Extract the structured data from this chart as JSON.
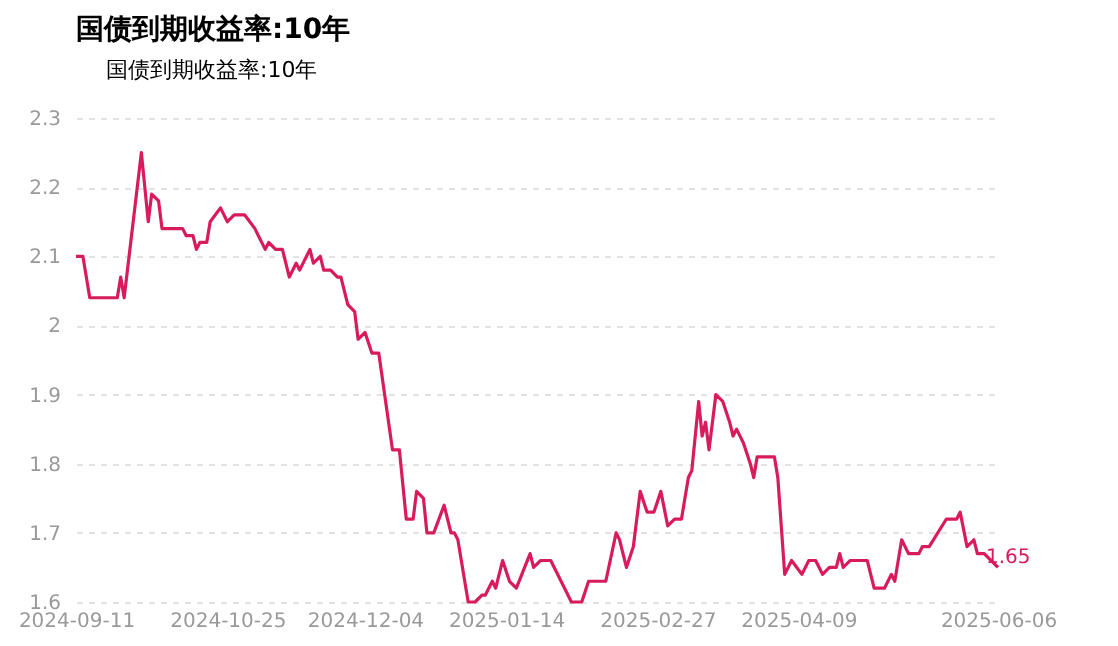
{
  "chart_data": {
    "type": "line",
    "title": "国债到期收益率:10年",
    "x": [
      "2024-09-11",
      "2024-09-13",
      "2024-09-15",
      "2024-09-23",
      "2024-09-24",
      "2024-09-25",
      "2024-09-30",
      "2024-10-02",
      "2024-10-03",
      "2024-10-05",
      "2024-10-06",
      "2024-10-12",
      "2024-10-13",
      "2024-10-15",
      "2024-10-16",
      "2024-10-17",
      "2024-10-19",
      "2024-10-20",
      "2024-10-23",
      "2024-10-25",
      "2024-10-27",
      "2024-10-30",
      "2024-11-02",
      "2024-11-05",
      "2024-11-06",
      "2024-11-08",
      "2024-11-10",
      "2024-11-12",
      "2024-11-14",
      "2024-11-15",
      "2024-11-18",
      "2024-11-19",
      "2024-11-21",
      "2024-11-22",
      "2024-11-24",
      "2024-11-26",
      "2024-11-27",
      "2024-11-29",
      "2024-12-01",
      "2024-12-02",
      "2024-12-04",
      "2024-12-06",
      "2024-12-08",
      "2024-12-12",
      "2024-12-14",
      "2024-12-16",
      "2024-12-18",
      "2024-12-19",
      "2024-12-21",
      "2024-12-22",
      "2024-12-24",
      "2024-12-27",
      "2024-12-29",
      "2024-12-30",
      "2024-12-31",
      "2025-01-03",
      "2025-01-05",
      "2025-01-07",
      "2025-01-08",
      "2025-01-10",
      "2025-01-11",
      "2025-01-13",
      "2025-01-15",
      "2025-01-17",
      "2025-01-21",
      "2025-01-22",
      "2025-01-24",
      "2025-01-27",
      "2025-01-30",
      "2025-02-02",
      "2025-02-05",
      "2025-02-07",
      "2025-02-12",
      "2025-02-15",
      "2025-02-16",
      "2025-02-18",
      "2025-02-20",
      "2025-02-22",
      "2025-02-24",
      "2025-02-26",
      "2025-02-28",
      "2025-03-02",
      "2025-03-04",
      "2025-03-06",
      "2025-03-08",
      "2025-03-09",
      "2025-03-11",
      "2025-03-12",
      "2025-03-13",
      "2025-03-14",
      "2025-03-15",
      "2025-03-16",
      "2025-03-18",
      "2025-03-20",
      "2025-03-21",
      "2025-03-22",
      "2025-03-24",
      "2025-03-26",
      "2025-03-27",
      "2025-03-28",
      "2025-04-02",
      "2025-04-03",
      "2025-04-05",
      "2025-04-07",
      "2025-04-10",
      "2025-04-12",
      "2025-04-14",
      "2025-04-16",
      "2025-04-18",
      "2025-04-20",
      "2025-04-21",
      "2025-04-22",
      "2025-04-24",
      "2025-04-29",
      "2025-05-01",
      "2025-05-04",
      "2025-05-06",
      "2025-05-07",
      "2025-05-09",
      "2025-05-11",
      "2025-05-14",
      "2025-05-15",
      "2025-05-17",
      "2025-05-22",
      "2025-05-25",
      "2025-05-26",
      "2025-05-28",
      "2025-05-30",
      "2025-05-31",
      "2025-06-02",
      "2025-06-04",
      "2025-06-06"
    ],
    "series": [
      {
        "name": "国债到期收益率:10年",
        "color": "#d81b5c",
        "values": [
          2.1,
          2.1,
          2.04,
          2.04,
          2.07,
          2.04,
          2.25,
          2.15,
          2.19,
          2.18,
          2.14,
          2.14,
          2.13,
          2.13,
          2.11,
          2.12,
          2.12,
          2.15,
          2.17,
          2.15,
          2.16,
          2.16,
          2.14,
          2.11,
          2.12,
          2.11,
          2.11,
          2.07,
          2.09,
          2.08,
          2.11,
          2.09,
          2.1,
          2.08,
          2.08,
          2.07,
          2.07,
          2.03,
          2.02,
          1.98,
          1.99,
          1.96,
          1.96,
          1.82,
          1.82,
          1.72,
          1.72,
          1.76,
          1.75,
          1.7,
          1.7,
          1.74,
          1.7,
          1.7,
          1.69,
          1.6,
          1.6,
          1.61,
          1.61,
          1.63,
          1.62,
          1.66,
          1.63,
          1.62,
          1.67,
          1.65,
          1.66,
          1.66,
          1.63,
          1.6,
          1.6,
          1.63,
          1.63,
          1.7,
          1.69,
          1.65,
          1.68,
          1.76,
          1.73,
          1.73,
          1.76,
          1.71,
          1.72,
          1.72,
          1.78,
          1.79,
          1.89,
          1.84,
          1.86,
          1.82,
          1.86,
          1.9,
          1.89,
          1.86,
          1.84,
          1.85,
          1.83,
          1.8,
          1.78,
          1.81,
          1.81,
          1.78,
          1.64,
          1.66,
          1.64,
          1.66,
          1.66,
          1.64,
          1.65,
          1.65,
          1.67,
          1.65,
          1.66,
          1.66,
          1.62,
          1.62,
          1.64,
          1.63,
          1.69,
          1.67,
          1.67,
          1.68,
          1.68,
          1.72,
          1.72,
          1.73,
          1.68,
          1.69,
          1.67,
          1.67,
          1.66,
          1.65
        ]
      }
    ],
    "xlim": [
      "2024-09-11",
      "2025-06-06"
    ],
    "xticks": [
      "2024-09-11",
      "2024-10-25",
      "2024-12-04",
      "2025-01-14",
      "2025-02-27",
      "2025-04-09",
      "2025-06-06"
    ],
    "ylim": [
      1.6,
      2.3
    ],
    "yticks": [
      1.6,
      1.7,
      1.8,
      1.9,
      2,
      2.1,
      2.2,
      2.3
    ],
    "annotations": [
      {
        "text": "1.65",
        "x": "2025-06-06",
        "y": 1.65
      }
    ],
    "grid": "y",
    "legend": "top",
    "marker": "none",
    "line_style": "solid"
  }
}
